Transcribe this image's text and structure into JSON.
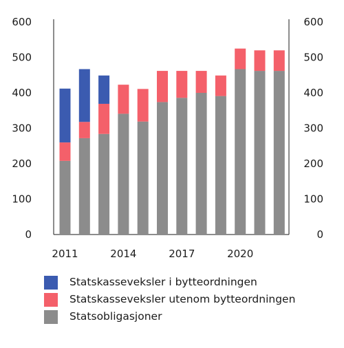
{
  "chart_data": {
    "type": "bar",
    "stacked": true,
    "title": "",
    "xlabel": "",
    "ylabel": "",
    "categories": [
      "2011",
      "2012",
      "2013",
      "2014",
      "2015",
      "2016",
      "2017",
      "2018",
      "2019",
      "2020",
      "2021",
      "2022"
    ],
    "x_tick_labels": [
      "2011",
      "2014",
      "2017",
      "2020"
    ],
    "x_tick_positions": [
      "2011",
      "2014",
      "2017",
      "2020"
    ],
    "ylim": [
      0,
      600
    ],
    "y_ticks": [
      0,
      100,
      200,
      300,
      400,
      500,
      600
    ],
    "grid": false,
    "legend_position": "bottom",
    "series": [
      {
        "name": "Statsobligasjoner",
        "color": "#8c8c8c",
        "values": [
          208,
          272,
          284,
          341,
          319,
          374,
          386,
          400,
          391,
          467,
          462,
          462
        ]
      },
      {
        "name": "Statskasseveksler utenom bytteordningen",
        "color": "#f4606a",
        "values": [
          52,
          46,
          85,
          82,
          92,
          88,
          76,
          62,
          58,
          58,
          58,
          58
        ]
      },
      {
        "name": "Statskasseveksler i bytteordningen",
        "color": "#3b5bb0",
        "values": [
          152,
          149,
          80,
          0,
          0,
          0,
          0,
          0,
          0,
          0,
          0,
          0
        ]
      }
    ]
  },
  "legend": [
    {
      "label": "Statskasseveksler i bytteordningen",
      "color": "#3b5bb0"
    },
    {
      "label": "Statskasseveksler utenom bytteordningen",
      "color": "#f4606a"
    },
    {
      "label": "Statsobligasjoner",
      "color": "#8c8c8c"
    }
  ]
}
